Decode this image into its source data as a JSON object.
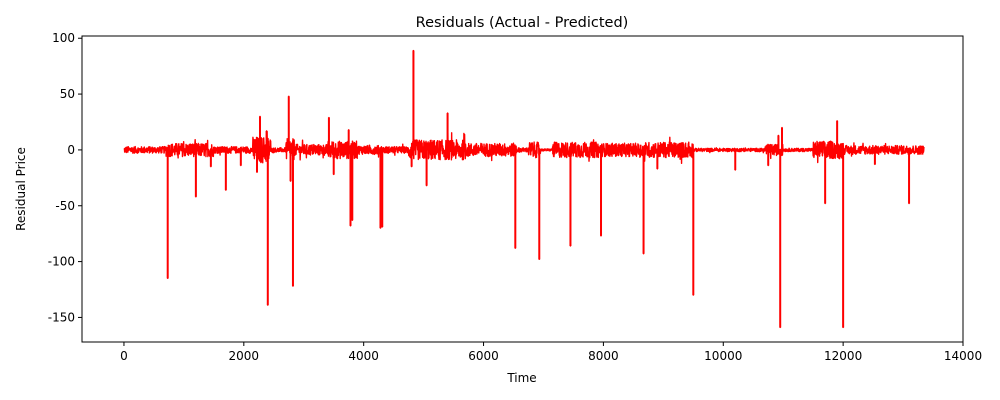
{
  "chart_data": {
    "type": "line",
    "title": "Residuals (Actual - Predicted)",
    "xlabel": "Time",
    "ylabel": "Residual Price",
    "xlim": [
      -700,
      14000
    ],
    "ylim": [
      -172,
      102
    ],
    "x_ticks": [
      0,
      2000,
      4000,
      6000,
      8000,
      10000,
      12000,
      14000
    ],
    "y_ticks": [
      -150,
      -100,
      -50,
      0,
      50,
      100
    ],
    "grid": false,
    "legend": "none",
    "series": [
      {
        "color": "#ff0000",
        "x_range": [
          0,
          13350
        ],
        "noise_segments": [
          {
            "x": [
              0,
              700
            ],
            "amplitude": 3
          },
          {
            "x": [
              700,
              1500
            ],
            "amplitude": 6
          },
          {
            "x": [
              1500,
              2150
            ],
            "amplitude": 3
          },
          {
            "x": [
              2150,
              2450
            ],
            "amplitude": 12
          },
          {
            "x": [
              2450,
              2700
            ],
            "amplitude": 2
          },
          {
            "x": [
              2700,
              2850
            ],
            "amplitude": 10
          },
          {
            "x": [
              2850,
              3400
            ],
            "amplitude": 5
          },
          {
            "x": [
              3400,
              3900
            ],
            "amplitude": 8
          },
          {
            "x": [
              3900,
              4300
            ],
            "amplitude": 4
          },
          {
            "x": [
              4300,
              4750
            ],
            "amplitude": 3
          },
          {
            "x": [
              4750,
              5700
            ],
            "amplitude": 9
          },
          {
            "x": [
              5700,
              6550
            ],
            "amplitude": 6
          },
          {
            "x": [
              6550,
              6750
            ],
            "amplitude": 2
          },
          {
            "x": [
              6750,
              6950
            ],
            "amplitude": 7
          },
          {
            "x": [
              6950,
              7150
            ],
            "amplitude": 1
          },
          {
            "x": [
              7150,
              7950
            ],
            "amplitude": 7
          },
          {
            "x": [
              7950,
              8700
            ],
            "amplitude": 6
          },
          {
            "x": [
              8700,
              9500
            ],
            "amplitude": 7
          },
          {
            "x": [
              9500,
              10700
            ],
            "amplitude": 1.5
          },
          {
            "x": [
              10700,
              11000
            ],
            "amplitude": 5
          },
          {
            "x": [
              11000,
              11500
            ],
            "amplitude": 1.5
          },
          {
            "x": [
              11500,
              12000
            ],
            "amplitude": 8
          },
          {
            "x": [
              12000,
              12300
            ],
            "amplitude": 4
          },
          {
            "x": [
              12300,
              13350
            ],
            "amplitude": 4
          }
        ],
        "spikes": [
          {
            "x": 730,
            "y": -115
          },
          {
            "x": 1200,
            "y": -42
          },
          {
            "x": 1450,
            "y": -15
          },
          {
            "x": 1700,
            "y": -36
          },
          {
            "x": 1950,
            "y": -14
          },
          {
            "x": 2220,
            "y": -20
          },
          {
            "x": 2270,
            "y": 30
          },
          {
            "x": 2380,
            "y": 17
          },
          {
            "x": 2400,
            "y": -139
          },
          {
            "x": 2750,
            "y": 48
          },
          {
            "x": 2780,
            "y": -28
          },
          {
            "x": 2820,
            "y": -122
          },
          {
            "x": 3420,
            "y": 29
          },
          {
            "x": 3500,
            "y": -22
          },
          {
            "x": 3750,
            "y": 18
          },
          {
            "x": 3780,
            "y": -68
          },
          {
            "x": 3810,
            "y": -63
          },
          {
            "x": 4280,
            "y": -70
          },
          {
            "x": 4310,
            "y": -69
          },
          {
            "x": 4800,
            "y": -15
          },
          {
            "x": 4830,
            "y": 89
          },
          {
            "x": 5050,
            "y": -32
          },
          {
            "x": 5400,
            "y": 33
          },
          {
            "x": 6530,
            "y": -88
          },
          {
            "x": 6930,
            "y": -98
          },
          {
            "x": 7450,
            "y": -86
          },
          {
            "x": 7960,
            "y": -77
          },
          {
            "x": 8670,
            "y": -93
          },
          {
            "x": 8900,
            "y": -17
          },
          {
            "x": 9500,
            "y": -130
          },
          {
            "x": 10200,
            "y": -18
          },
          {
            "x": 10750,
            "y": -14
          },
          {
            "x": 10920,
            "y": 13
          },
          {
            "x": 10950,
            "y": -159
          },
          {
            "x": 10980,
            "y": 20
          },
          {
            "x": 11700,
            "y": -48
          },
          {
            "x": 11900,
            "y": 26
          },
          {
            "x": 12000,
            "y": -159
          },
          {
            "x": 12530,
            "y": -13
          },
          {
            "x": 13100,
            "y": -48
          }
        ]
      }
    ]
  }
}
